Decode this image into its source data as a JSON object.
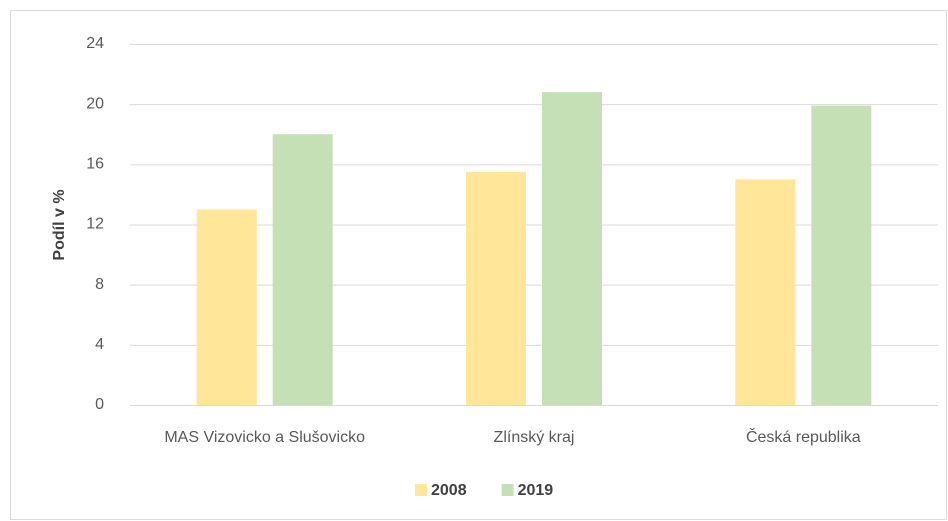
{
  "chart_data": {
    "type": "bar",
    "y_label": "Podíl v %",
    "categories": [
      "MAS Vizovicko a Slušovicko",
      "Zlínský kraj",
      "Česká republika"
    ],
    "series": [
      {
        "name": "2008",
        "color": "#ffe699",
        "values": [
          13,
          15.5,
          15
        ]
      },
      {
        "name": "2019",
        "color": "#c5e0b4",
        "values": [
          18,
          20.8,
          19.9
        ]
      }
    ],
    "ylim": [
      0,
      24
    ],
    "yticks": [
      0,
      4,
      8,
      12,
      16,
      20,
      24
    ],
    "grid": true,
    "legend": "bottom"
  }
}
